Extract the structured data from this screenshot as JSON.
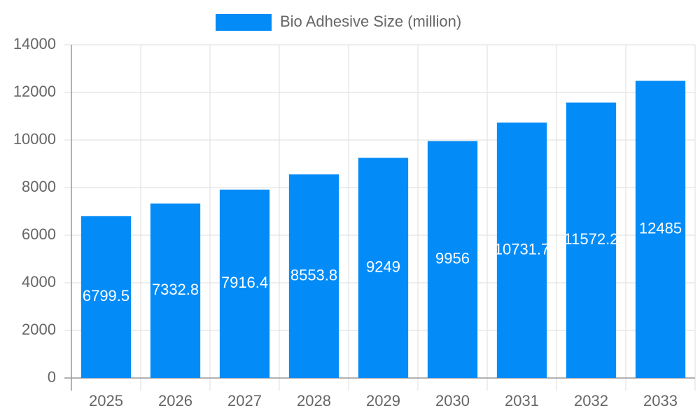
{
  "chart_data": {
    "type": "bar",
    "legend": "Bio Adhesive Size (million)",
    "color": "#038cf8",
    "categories": [
      "2025",
      "2026",
      "2027",
      "2028",
      "2029",
      "2030",
      "2031",
      "2032",
      "2033"
    ],
    "values": [
      6799.5,
      7332.8,
      7916.4,
      8553.8,
      9249,
      9956,
      10731.7,
      11572.2,
      12485
    ],
    "ylim": [
      0,
      14000
    ],
    "yticks": [
      0,
      2000,
      4000,
      6000,
      8000,
      10000,
      12000,
      14000
    ],
    "grid": true
  }
}
